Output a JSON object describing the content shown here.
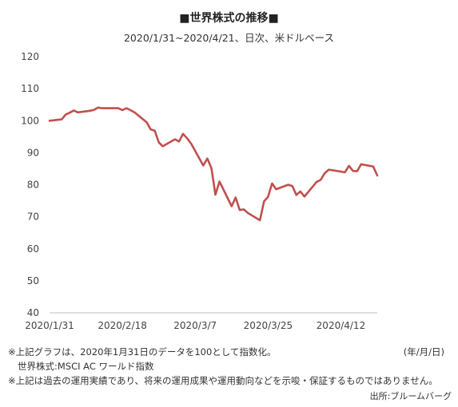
{
  "chart_data": {
    "type": "line",
    "title": "■世界株式の推移■",
    "subtitle": "2020/1/31~2020/4/21、日次、米ドルベース",
    "xlabel": "",
    "ylabel": "",
    "ylim": [
      40,
      120
    ],
    "yticks": [
      "120",
      "110",
      "100",
      "90",
      "80",
      "70",
      "60",
      "50",
      "40"
    ],
    "xtick_labels": [
      "2020/1/31",
      "2020/2/18",
      "2020/3/7",
      "2020/3/25",
      "2020/4/12"
    ],
    "x_start": "2020/1/31",
    "x_end": "2020/4/21",
    "grid": false,
    "legend": "none",
    "line_color": "#c0504d",
    "series": [
      {
        "x": [
          "2020/1/31",
          "2020/2/3",
          "2020/2/4",
          "2020/2/5",
          "2020/2/6",
          "2020/2/7",
          "2020/2/10",
          "2020/2/11",
          "2020/2/12",
          "2020/2/13",
          "2020/2/14",
          "2020/2/17",
          "2020/2/18",
          "2020/2/19",
          "2020/2/20",
          "2020/2/21",
          "2020/2/24",
          "2020/2/25",
          "2020/2/26",
          "2020/2/27",
          "2020/2/28",
          "2020/3/2",
          "2020/3/3",
          "2020/3/4",
          "2020/3/5",
          "2020/3/6",
          "2020/3/9",
          "2020/3/10",
          "2020/3/11",
          "2020/3/12",
          "2020/3/13",
          "2020/3/16",
          "2020/3/17",
          "2020/3/18",
          "2020/3/19",
          "2020/3/20",
          "2020/3/23",
          "2020/3/24",
          "2020/3/25",
          "2020/3/26",
          "2020/3/27",
          "2020/3/30",
          "2020/3/31",
          "2020/4/1",
          "2020/4/2",
          "2020/4/3",
          "2020/4/6",
          "2020/4/7",
          "2020/4/8",
          "2020/4/9",
          "2020/4/10",
          "2020/4/13",
          "2020/4/14",
          "2020/4/15",
          "2020/4/16",
          "2020/4/17",
          "2020/4/20",
          "2020/4/21"
        ],
        "values": [
          100.0,
          100.4,
          101.9,
          102.5,
          103.2,
          102.6,
          103.1,
          103.4,
          104.1,
          103.9,
          103.9,
          103.9,
          103.3,
          103.9,
          103.3,
          102.6,
          99.5,
          97.3,
          96.9,
          93.2,
          92.0,
          94.2,
          93.5,
          95.9,
          94.5,
          92.8,
          86.0,
          88.2,
          85.2,
          76.9,
          81.0,
          73.3,
          76.0,
          72.1,
          72.3,
          71.2,
          68.9,
          74.8,
          76.2,
          80.4,
          78.6,
          80.0,
          79.6,
          76.8,
          77.9,
          76.3,
          80.9,
          81.5,
          83.6,
          84.7,
          84.5,
          83.9,
          85.9,
          84.3,
          84.2,
          86.4,
          85.7,
          82.9
        ]
      }
    ]
  },
  "footnotes": {
    "note1": "※上記グラフは、2020年1月31日のデータを100として指数化。",
    "date_format": "(年/月/日)",
    "note2": "世界株式:MSCI AC ワールド指数",
    "note3": "※上記は過去の運用実績であり、将来の運用成果や運用動向などを示唆・保証するものではありません。",
    "source": "出所:ブルームバーグ"
  }
}
